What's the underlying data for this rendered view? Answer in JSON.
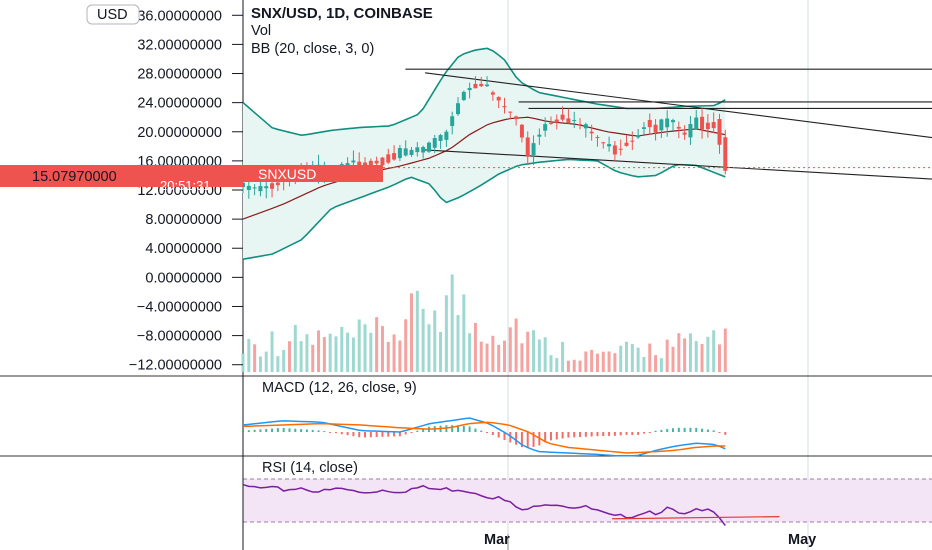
{
  "header": {
    "currency_button": "USD",
    "title": "SNX/USD, 1D, COINBASE",
    "vol_label": "Vol",
    "bb_label": "BB (20, close, 3, 0)",
    "macd_label": "MACD (12, 26, close, 9)",
    "rsi_label": "RSI (14, close)"
  },
  "price_tag": {
    "price": "15.07970000",
    "countdown": "20:51:31",
    "symbol": "SNXUSD"
  },
  "colors": {
    "up": "#26a69a",
    "down": "#ef5350",
    "bb_band": "#0f8f7f",
    "bb_fill": "#e8f6f3",
    "bb_basis": "#8b1a1a",
    "macd_line": "#2196f3",
    "signal_line": "#ff6d00",
    "rsi_line": "#7b1fa2",
    "rsi_band": "#f3e5f5",
    "price_tag": "#ef5350",
    "trendline": "#222222"
  },
  "chart_data": {
    "type": "candlestick",
    "title": "SNX/USD, 1D, COINBASE",
    "y_axis": {
      "ticks": [
        "36.00000000",
        "32.00000000",
        "28.00000000",
        "24.00000000",
        "20.00000000",
        "16.00000000",
        "12.00000000",
        "8.00000000",
        "4.00000000",
        "0.00000000",
        "−4.00000000",
        "−8.00000000",
        "−12.00000000"
      ],
      "tick_values": [
        36,
        32,
        28,
        24,
        20,
        16,
        12,
        8,
        4,
        0,
        -4,
        -8,
        -12
      ],
      "ylim": [
        -13,
        37
      ]
    },
    "x_axis": {
      "labels": [
        "Mar",
        "May"
      ],
      "label_days": [
        59,
        120
      ],
      "xlim": [
        0,
        140
      ]
    },
    "last_day": 83,
    "close_anchors": [
      [
        0,
        12.5
      ],
      [
        3,
        11.8
      ],
      [
        6,
        12.8
      ],
      [
        10,
        13.8
      ],
      [
        14,
        14.8
      ],
      [
        18,
        14.3
      ],
      [
        22,
        15.4
      ],
      [
        26,
        15.9
      ],
      [
        30,
        16.6
      ],
      [
        34,
        17.2
      ],
      [
        37,
        17.8
      ],
      [
        40,
        18.5
      ],
      [
        42,
        21.5
      ],
      [
        44,
        24.8
      ],
      [
        46,
        26.5
      ],
      [
        48,
        26.8
      ],
      [
        50,
        25.5
      ],
      [
        52,
        23.8
      ],
      [
        54,
        22.8
      ],
      [
        56,
        21.0
      ],
      [
        57,
        18.2
      ],
      [
        58,
        16.5
      ],
      [
        59,
        18.8
      ],
      [
        61,
        21.0
      ],
      [
        63,
        21.8
      ],
      [
        65,
        22.3
      ],
      [
        67,
        21.6
      ],
      [
        69,
        20.6
      ],
      [
        71,
        19.7
      ],
      [
        73,
        18.6
      ],
      [
        75,
        17.4
      ],
      [
        76,
        17.7
      ],
      [
        78,
        18.7
      ],
      [
        80,
        19.6
      ],
      [
        82,
        22.0
      ],
      [
        84,
        20.5
      ],
      [
        86,
        21.8
      ],
      [
        88,
        20.6
      ],
      [
        90,
        19.4
      ],
      [
        92,
        21.6
      ],
      [
        94,
        20.9
      ],
      [
        96,
        21.4
      ],
      [
        97,
        18.2
      ],
      [
        98,
        15.1
      ]
    ],
    "bb_upper_anchors": [
      [
        0,
        24.0
      ],
      [
        6,
        20.5
      ],
      [
        12,
        19.5
      ],
      [
        18,
        20.2
      ],
      [
        24,
        20.6
      ],
      [
        30,
        20.8
      ],
      [
        36,
        22.5
      ],
      [
        41,
        28.0
      ],
      [
        44,
        30.5
      ],
      [
        47,
        31.2
      ],
      [
        50,
        31.5
      ],
      [
        53,
        30.0
      ],
      [
        56,
        27.0
      ],
      [
        60,
        25.4
      ],
      [
        66,
        24.6
      ],
      [
        72,
        23.8
      ],
      [
        78,
        23.2
      ],
      [
        84,
        23.2
      ],
      [
        90,
        23.5
      ],
      [
        96,
        23.6
      ],
      [
        98,
        24.4
      ]
    ],
    "bb_basis_anchors": [
      [
        0,
        8.0
      ],
      [
        8,
        10.0
      ],
      [
        16,
        12.5
      ],
      [
        24,
        14.2
      ],
      [
        32,
        15.3
      ],
      [
        38,
        16.4
      ],
      [
        42,
        17.6
      ],
      [
        46,
        19.6
      ],
      [
        50,
        21.1
      ],
      [
        54,
        21.8
      ],
      [
        58,
        22.0
      ],
      [
        62,
        21.4
      ],
      [
        68,
        21.0
      ],
      [
        74,
        20.0
      ],
      [
        80,
        19.4
      ],
      [
        86,
        20.0
      ],
      [
        92,
        20.4
      ],
      [
        98,
        19.6
      ]
    ],
    "bb_lower_anchors": [
      [
        0,
        2.5
      ],
      [
        6,
        3.2
      ],
      [
        12,
        5.2
      ],
      [
        18,
        9.5
      ],
      [
        24,
        11.0
      ],
      [
        30,
        12.5
      ],
      [
        34,
        13.8
      ],
      [
        38,
        12.8
      ],
      [
        41,
        10.2
      ],
      [
        44,
        11.0
      ],
      [
        48,
        12.5
      ],
      [
        52,
        14.2
      ],
      [
        56,
        15.4
      ],
      [
        60,
        15.8
      ],
      [
        66,
        16.2
      ],
      [
        72,
        16.0
      ],
      [
        76,
        14.5
      ],
      [
        80,
        13.8
      ],
      [
        84,
        14.0
      ],
      [
        88,
        15.5
      ],
      [
        92,
        15.4
      ],
      [
        98,
        13.8
      ]
    ],
    "macd_anchors": [
      [
        0,
        0.5
      ],
      [
        8,
        0.8
      ],
      [
        16,
        0.7
      ],
      [
        24,
        0.1
      ],
      [
        32,
        0.0
      ],
      [
        38,
        0.6
      ],
      [
        42,
        0.8
      ],
      [
        46,
        1.0
      ],
      [
        50,
        0.6
      ],
      [
        54,
        -0.2
      ],
      [
        57,
        -1.0
      ],
      [
        60,
        -1.4
      ],
      [
        66,
        -1.5
      ],
      [
        72,
        -1.6
      ],
      [
        76,
        -1.7
      ],
      [
        80,
        -1.7
      ],
      [
        84,
        -1.3
      ],
      [
        88,
        -1.0
      ],
      [
        92,
        -0.8
      ],
      [
        96,
        -0.9
      ],
      [
        98,
        -1.2
      ]
    ],
    "signal_anchors": [
      [
        0,
        0.4
      ],
      [
        8,
        0.5
      ],
      [
        16,
        0.6
      ],
      [
        24,
        0.5
      ],
      [
        32,
        0.3
      ],
      [
        38,
        0.2
      ],
      [
        42,
        0.3
      ],
      [
        46,
        0.6
      ],
      [
        50,
        0.7
      ],
      [
        54,
        0.5
      ],
      [
        58,
        0.0
      ],
      [
        62,
        -0.8
      ],
      [
        66,
        -1.1
      ],
      [
        72,
        -1.3
      ],
      [
        78,
        -1.5
      ],
      [
        84,
        -1.4
      ],
      [
        88,
        -1.3
      ],
      [
        92,
        -1.1
      ],
      [
        96,
        -1.0
      ],
      [
        98,
        -1.0
      ]
    ],
    "rsi_anchors": [
      [
        0,
        63
      ],
      [
        4,
        61
      ],
      [
        8,
        60
      ],
      [
        12,
        62
      ],
      [
        16,
        58
      ],
      [
        20,
        61
      ],
      [
        24,
        57
      ],
      [
        28,
        60
      ],
      [
        32,
        59
      ],
      [
        36,
        62
      ],
      [
        40,
        60
      ],
      [
        44,
        61
      ],
      [
        48,
        57
      ],
      [
        52,
        52
      ],
      [
        54,
        48
      ],
      [
        56,
        42
      ],
      [
        58,
        40
      ],
      [
        60,
        47
      ],
      [
        62,
        48
      ],
      [
        64,
        47
      ],
      [
        66,
        45
      ],
      [
        68,
        44
      ],
      [
        70,
        43
      ],
      [
        72,
        40
      ],
      [
        74,
        36
      ],
      [
        76,
        34
      ],
      [
        78,
        36
      ],
      [
        80,
        37
      ],
      [
        82,
        41
      ],
      [
        84,
        39
      ],
      [
        86,
        43
      ],
      [
        88,
        38
      ],
      [
        90,
        36
      ],
      [
        92,
        40
      ],
      [
        94,
        40
      ],
      [
        96,
        42
      ],
      [
        97,
        35
      ],
      [
        98,
        28
      ]
    ],
    "volume_profile": [
      [
        0,
        5
      ],
      [
        10,
        6
      ],
      [
        20,
        6
      ],
      [
        30,
        7
      ],
      [
        38,
        12
      ],
      [
        43,
        14
      ],
      [
        46,
        9
      ],
      [
        52,
        8
      ],
      [
        56,
        9
      ],
      [
        60,
        5
      ],
      [
        66,
        4
      ],
      [
        72,
        3
      ],
      [
        80,
        4
      ],
      [
        88,
        5
      ],
      [
        94,
        5
      ],
      [
        97,
        9
      ],
      [
        98,
        6
      ]
    ],
    "trendlines": [
      {
        "from": [
          33,
          28.6
        ],
        "to": [
          140,
          28.6
        ]
      },
      {
        "from": [
          37,
          28.1
        ],
        "to": [
          140,
          19.2
        ]
      },
      {
        "from": [
          56,
          24.1
        ],
        "to": [
          140,
          24.1
        ]
      },
      {
        "from": [
          58,
          23.2
        ],
        "to": [
          140,
          23.2
        ]
      },
      {
        "from": [
          37,
          17.5
        ],
        "to": [
          140,
          13.5
        ]
      }
    ],
    "rsi_support_line": {
      "from": [
        75,
        33
      ],
      "to": [
        109,
        35
      ]
    },
    "current_price_line": 15.0797
  }
}
